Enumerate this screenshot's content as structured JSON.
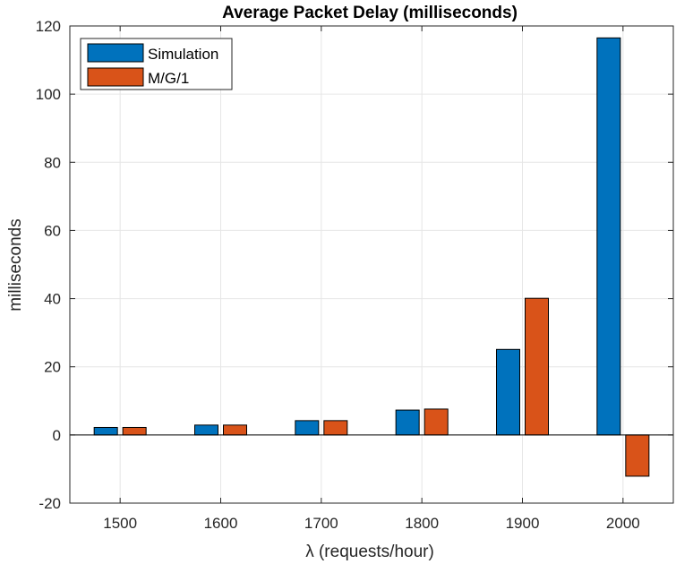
{
  "chart_data": {
    "type": "bar",
    "title": "Average Packet Delay (milliseconds)",
    "xlabel": "λ (requests/hour)",
    "ylabel": "milliseconds",
    "categories": [
      "1500",
      "1600",
      "1700",
      "1800",
      "1900",
      "2000"
    ],
    "series": [
      {
        "name": "Simulation",
        "color": "#0072BD",
        "values": [
          2.2,
          2.9,
          4.2,
          7.3,
          25.1,
          116.5
        ]
      },
      {
        "name": "M/G/1",
        "color": "#D95319",
        "values": [
          2.2,
          2.9,
          4.2,
          7.6,
          40.1,
          -12.1
        ]
      }
    ],
    "ylim": [
      -20,
      120
    ],
    "yticks": [
      "-20",
      "0",
      "20",
      "40",
      "60",
      "80",
      "100",
      "120"
    ],
    "grid": true,
    "legend_position": "top-left"
  }
}
